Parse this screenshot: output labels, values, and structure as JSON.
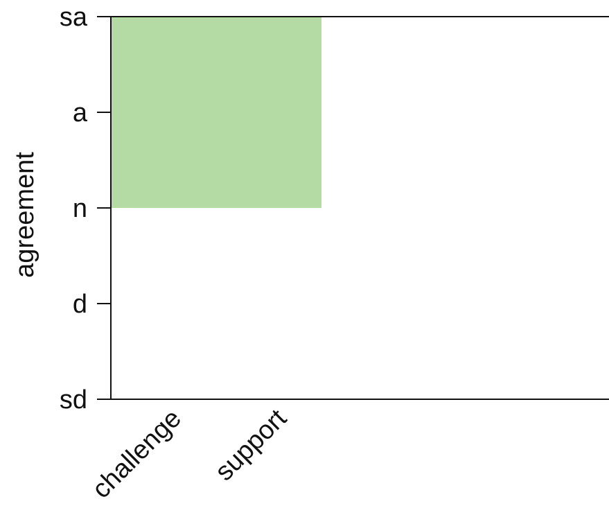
{
  "chart_data": {
    "type": "bar",
    "orientation": "vertical",
    "ylabel": "agreement",
    "xlabel": "",
    "y_ticks": [
      "sd",
      "d",
      "n",
      "a",
      "sa"
    ],
    "y_tick_values": [
      1,
      2,
      3,
      4,
      5
    ],
    "ylim": [
      1,
      5
    ],
    "categories": [
      "challenge",
      "support"
    ],
    "bar": {
      "x_span_start": "challenge",
      "x_span_end": "support",
      "y_from": 3,
      "y_to": 5,
      "color": "#b4dba4"
    },
    "grid": false,
    "legend": "none",
    "colors": {
      "axis": "#111111",
      "bar": "#b4dba4"
    }
  }
}
